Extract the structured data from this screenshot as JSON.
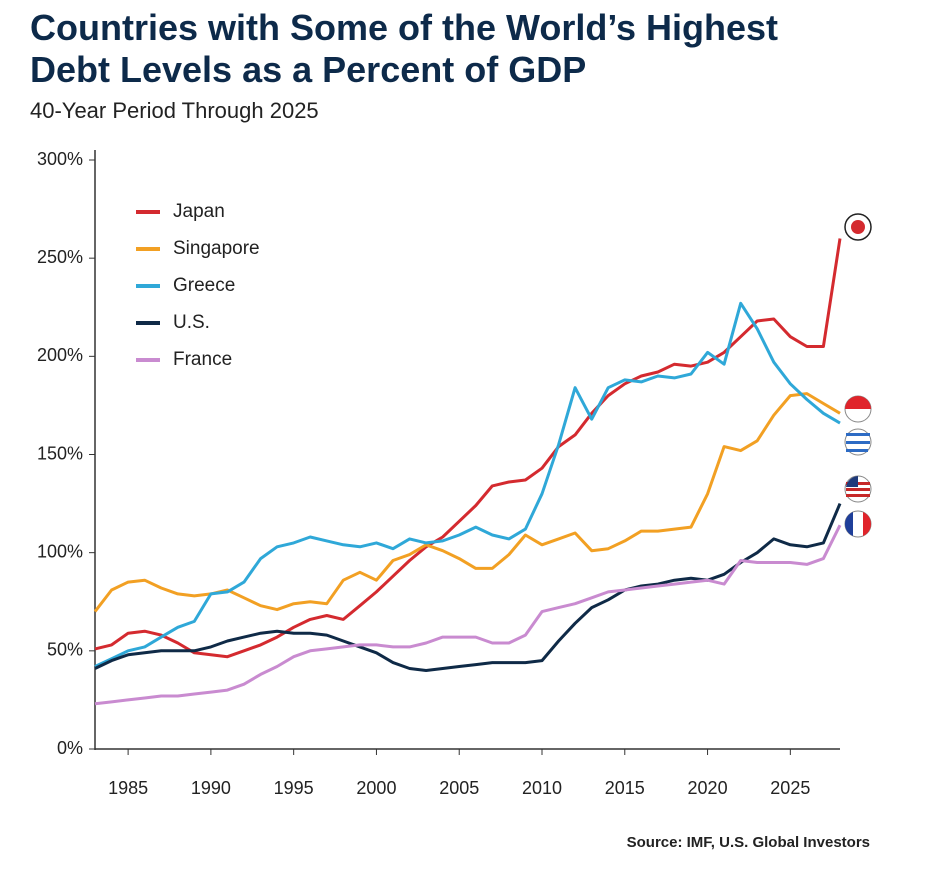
{
  "chart_data": {
    "type": "line",
    "title": "Countries with Some of the World’s Highest Debt Levels as a Percent of GDP",
    "subtitle": "40-Year Period Through 2025",
    "source": "Source: IMF, U.S. Global Investors",
    "x": [
      1983,
      1984,
      1985,
      1986,
      1987,
      1988,
      1989,
      1990,
      1991,
      1992,
      1993,
      1994,
      1995,
      1996,
      1997,
      1998,
      1999,
      2000,
      2001,
      2002,
      2003,
      2004,
      2005,
      2006,
      2007,
      2008,
      2009,
      2010,
      2011,
      2012,
      2013,
      2014,
      2015,
      2016,
      2017,
      2018,
      2019,
      2020,
      2021,
      2022,
      2023,
      2024,
      2025,
      2026,
      2027,
      2028
    ],
    "xlim": [
      1983,
      2028
    ],
    "xticks": [
      1985,
      1990,
      1995,
      2000,
      2005,
      2010,
      2015,
      2020,
      2025
    ],
    "ylim": [
      0,
      300
    ],
    "yticks": [
      {
        "value": 0,
        "label": "0%"
      },
      {
        "value": 50,
        "label": "50%"
      },
      {
        "value": 100,
        "label": "100%"
      },
      {
        "value": 150,
        "label": "150%"
      },
      {
        "value": 200,
        "label": "200%"
      },
      {
        "value": 250,
        "label": "250%"
      },
      {
        "value": 300,
        "label": "300%"
      }
    ],
    "grid": false,
    "legend": "upper left",
    "series": [
      {
        "name": "Japan",
        "color": "#d42a2f",
        "values": [
          51,
          53,
          59,
          60,
          58,
          54,
          49,
          48,
          47,
          50,
          53,
          57,
          62,
          66,
          68,
          66,
          73,
          80,
          88,
          96,
          103,
          108,
          116,
          124,
          134,
          136,
          137,
          143,
          154,
          160,
          171,
          180,
          186,
          190,
          192,
          196,
          195,
          197,
          202,
          210,
          218,
          219,
          210,
          205,
          205,
          260
        ]
      },
      {
        "name": "Singapore",
        "color": "#f2a023",
        "values": [
          70,
          81,
          85,
          86,
          82,
          79,
          78,
          79,
          81,
          77,
          73,
          71,
          74,
          75,
          74,
          86,
          90,
          86,
          96,
          99,
          104,
          101,
          97,
          92,
          92,
          99,
          109,
          104,
          107,
          110,
          101,
          102,
          106,
          111,
          111,
          112,
          113,
          130,
          154,
          152,
          157,
          170,
          180,
          181,
          176,
          171
        ]
      },
      {
        "name": "Greece",
        "color": "#2fa8d8",
        "values": [
          42,
          46,
          50,
          52,
          57,
          62,
          65,
          79,
          80,
          85,
          97,
          103,
          105,
          108,
          106,
          104,
          103,
          105,
          102,
          107,
          105,
          106,
          109,
          113,
          109,
          107,
          112,
          130,
          155,
          184,
          168,
          184,
          188,
          187,
          190,
          189,
          191,
          202,
          196,
          227,
          214,
          197,
          186,
          178,
          171,
          166
        ]
      },
      {
        "name": "U.S.",
        "color": "#0f2a47",
        "values": [
          41,
          45,
          48,
          49,
          50,
          50,
          50,
          52,
          55,
          57,
          59,
          60,
          59,
          59,
          58,
          55,
          52,
          49,
          44,
          41,
          40,
          41,
          42,
          43,
          44,
          44,
          44,
          45,
          55,
          64,
          72,
          76,
          81,
          83,
          84,
          86,
          87,
          86,
          89,
          95,
          100,
          107,
          104,
          103,
          105,
          125
        ]
      },
      {
        "name": "France",
        "color": "#c98bd0",
        "values": [
          23,
          24,
          25,
          26,
          27,
          27,
          28,
          29,
          30,
          33,
          38,
          42,
          47,
          50,
          51,
          52,
          53,
          53,
          52,
          52,
          54,
          57,
          57,
          57,
          54,
          54,
          58,
          70,
          72,
          74,
          77,
          80,
          81,
          82,
          83,
          84,
          85,
          86,
          84,
          96,
          95,
          95,
          95,
          94,
          97,
          114
        ]
      }
    ]
  }
}
